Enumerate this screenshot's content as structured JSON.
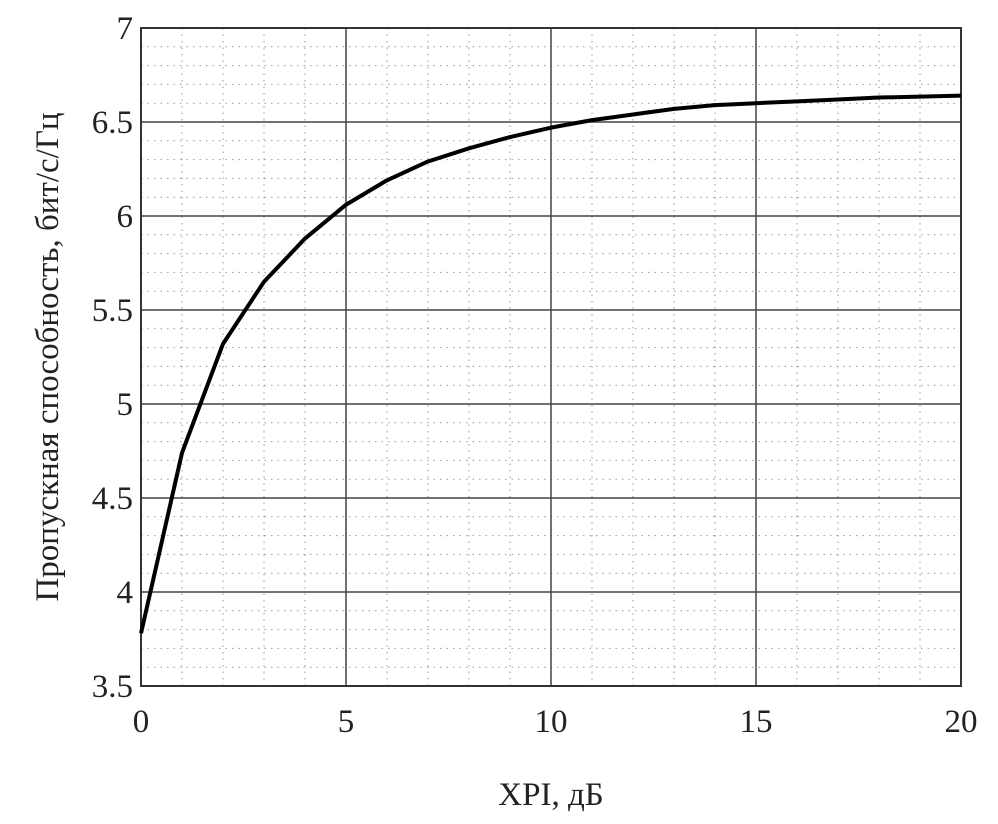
{
  "chart_data": {
    "type": "line",
    "title": "",
    "xlabel": "XPI, дБ",
    "ylabel": "Пропускная способность, бит/с/Гц",
    "xlim": [
      0,
      20
    ],
    "ylim": [
      3.5,
      7
    ],
    "xticks": [
      "0",
      "5",
      "10",
      "15",
      "20"
    ],
    "yticks": [
      "3.5",
      "4",
      "4.5",
      "5",
      "5.5",
      "6",
      "6.5",
      "7"
    ],
    "grid": true,
    "minor_grid": true,
    "line_color": "#000000",
    "series": [
      {
        "x": [
          0,
          1,
          2,
          3,
          4,
          5,
          6,
          7,
          8,
          9,
          10,
          11,
          12,
          13,
          14,
          15,
          16,
          17,
          18,
          19,
          20
        ],
        "values": [
          3.78,
          4.74,
          5.32,
          5.65,
          5.88,
          6.06,
          6.19,
          6.29,
          6.36,
          6.42,
          6.47,
          6.51,
          6.54,
          6.57,
          6.59,
          6.6,
          6.61,
          6.62,
          6.63,
          6.635,
          6.64
        ]
      }
    ]
  }
}
